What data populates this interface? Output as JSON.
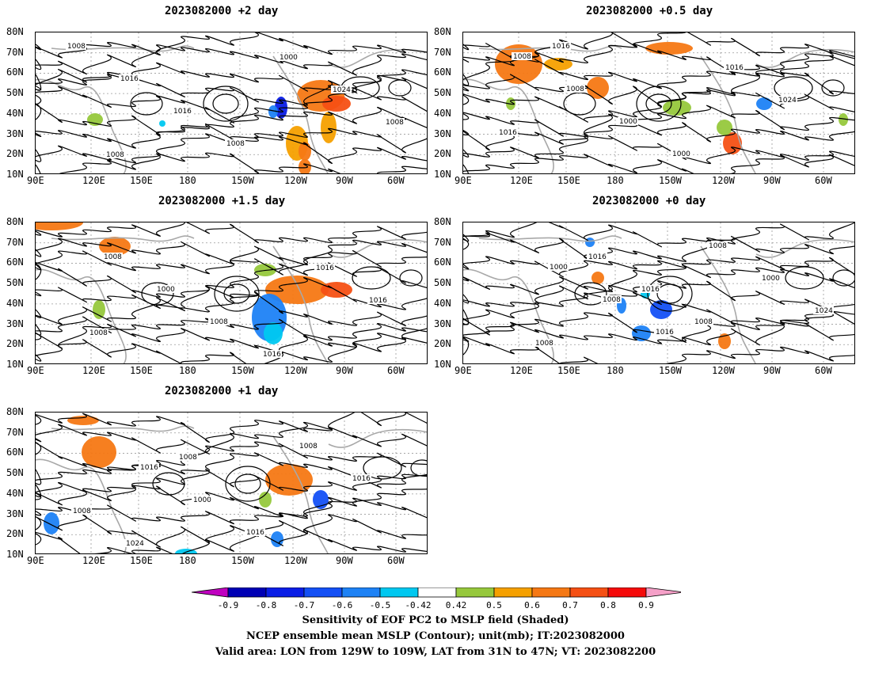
{
  "panels": [
    {
      "id": "p2",
      "title": "2023082000 +2 day",
      "lat_labels": [
        "80N",
        "70N",
        "60N",
        "50N",
        "40N",
        "30N",
        "20N",
        "10N"
      ],
      "lon_labels": [
        "90E",
        "120E",
        "150E",
        "180",
        "150W",
        "120W",
        "90W",
        "60W"
      ],
      "contour_labels": [
        "1008",
        "1016",
        "1016",
        "1008",
        "1000",
        "1024",
        "1008",
        "1008"
      ]
    },
    {
      "id": "p05",
      "title": "2023082000 +0.5 day",
      "lat_labels": [
        "80N",
        "70N",
        "60N",
        "50N",
        "40N",
        "30N",
        "20N",
        "10N"
      ],
      "lon_labels": [
        "90E",
        "120E",
        "150E",
        "180",
        "150W",
        "120W",
        "90W",
        "60W"
      ],
      "contour_labels": [
        "1008",
        "1008",
        "1000",
        "1000",
        "1016",
        "1024",
        "1016",
        "1016"
      ]
    },
    {
      "id": "p15",
      "title": "2023082000 +1.5 day",
      "lat_labels": [
        "80N",
        "70N",
        "60N",
        "50N",
        "40N",
        "30N",
        "20N",
        "10N"
      ],
      "lon_labels": [
        "90E",
        "120E",
        "150E",
        "180",
        "150W",
        "120W",
        "90W",
        "60W"
      ],
      "contour_labels": [
        "1008",
        "1000",
        "1008",
        "1016",
        "1016",
        "1016",
        "1008"
      ]
    },
    {
      "id": "p0",
      "title": "2023082000 +0 day",
      "lat_labels": [
        "80N",
        "70N",
        "60N",
        "50N",
        "40N",
        "30N",
        "20N",
        "10N"
      ],
      "lon_labels": [
        "90E",
        "120E",
        "150E",
        "180",
        "150W",
        "120W",
        "90W",
        "60W"
      ],
      "contour_labels": [
        "1000",
        "1008",
        "1016",
        "1008",
        "1000",
        "1024",
        "1008",
        "1016",
        "1016",
        "1008"
      ]
    },
    {
      "id": "p1",
      "title": "2023082000 +1 day",
      "lat_labels": [
        "80N",
        "70N",
        "60N",
        "50N",
        "40N",
        "30N",
        "20N",
        "10N"
      ],
      "lon_labels": [
        "90E",
        "120E",
        "150E",
        "180",
        "150W",
        "120W",
        "90W",
        "60W"
      ],
      "contour_labels": [
        "1016",
        "1000",
        "1016",
        "1008",
        "1016",
        "1008",
        "1024",
        "1008"
      ]
    }
  ],
  "colorbar": {
    "labels": [
      "-0.9",
      "-0.8",
      "-0.7",
      "-0.6",
      "-0.5",
      "-0.42",
      "0.42",
      "0.5",
      "0.6",
      "0.7",
      "0.8",
      "0.9"
    ],
    "colors": [
      "#0000b4",
      "#0a1ee6",
      "#1450f5",
      "#1e82f5",
      "#00c8f0",
      "#ffffff",
      "#96c83c",
      "#f5a000",
      "#f57814",
      "#f55014",
      "#f50a0a"
    ],
    "low_color": "#c000c0",
    "high_color": "#f5a0c8"
  },
  "caption": {
    "line1": "Sensitivity of EOF PC2 to MSLP field (Shaded)",
    "line2": "NCEP ensemble mean MSLP (Contour); unit(mb); IT:2023082000",
    "line3": "Valid area: LON from 129W to 109W, LAT from 31N to 47N; VT: 2023082200"
  }
}
